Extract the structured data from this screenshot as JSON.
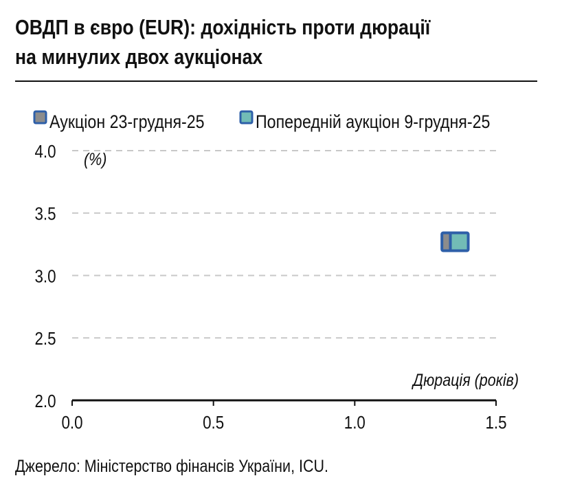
{
  "title_line1": "ОВДП в євро (EUR): дохідність проти дюрації",
  "title_line2": "на минулих двох аукціонах",
  "source": "Джерело: Міністерство фінансів України, ICU.",
  "chart_data": {
    "type": "scatter",
    "title": "ОВДП в євро (EUR): дохідність проти дюрації на минулих двох аукціонах",
    "xlabel": "Дюрація (років)",
    "ylabel": "(%)",
    "xlim": [
      0,
      1.5
    ],
    "ylim": [
      2.0,
      4.0
    ],
    "xticks": [
      "0.0",
      "0.5",
      "1.0",
      "1.5"
    ],
    "xtick_values": [
      0,
      0.5,
      1.0,
      1.5
    ],
    "yticks": [
      "2.0",
      "2.5",
      "3.0",
      "3.5",
      "4.0"
    ],
    "ytick_values": [
      2.0,
      2.5,
      3.0,
      3.5,
      4.0
    ],
    "grid": "horizontal dashed",
    "legend_position": "top-left",
    "series": [
      {
        "name": "Аукціон 23-грудня-25",
        "fill": "#8c8c8c",
        "stroke": "#2e5fa8",
        "points": [
          {
            "x": 1.34,
            "y": 3.27
          }
        ]
      },
      {
        "name": "Попередній аукціон 9-грудня-25",
        "fill": "#72bcb6",
        "stroke": "#2e5fa8",
        "points": [
          {
            "x": 1.37,
            "y": 3.27
          }
        ]
      }
    ]
  }
}
